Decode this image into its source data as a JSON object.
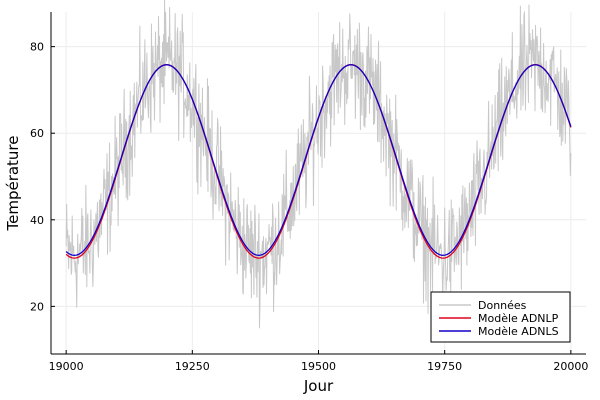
{
  "chart_data": {
    "type": "line",
    "xlabel": "Jour",
    "ylabel": "Température",
    "xlim": [
      18970,
      20030
    ],
    "ylim": [
      9,
      88
    ],
    "x_ticks": [
      19000,
      19250,
      19500,
      19750,
      20000
    ],
    "y_ticks": [
      20,
      40,
      60,
      80
    ],
    "grid": true,
    "legend_position": "bottom-right",
    "colors": {
      "data": "#c8c8c8",
      "adnlp": "#e0001b",
      "adnls": "#1400c8"
    },
    "series": [
      {
        "name": "Données",
        "kind": "noisy-observations",
        "x_range": [
          19000,
          20000
        ],
        "approx_points": [
          [
            19000,
            32
          ],
          [
            19005,
            45
          ],
          [
            19010,
            28
          ],
          [
            19015,
            25
          ],
          [
            19020,
            36
          ],
          [
            19030,
            14
          ],
          [
            19040,
            30
          ],
          [
            19055,
            35
          ],
          [
            19065,
            17
          ],
          [
            19080,
            50
          ],
          [
            19100,
            42
          ],
          [
            19120,
            58
          ],
          [
            19150,
            66
          ],
          [
            19175,
            78
          ],
          [
            19200,
            80
          ],
          [
            19225,
            72
          ],
          [
            19250,
            68
          ],
          [
            19275,
            55
          ],
          [
            19300,
            44
          ],
          [
            19330,
            36
          ],
          [
            19360,
            30
          ],
          [
            19380,
            28
          ],
          [
            19395,
            16
          ],
          [
            19420,
            40
          ],
          [
            19450,
            52
          ],
          [
            19480,
            62
          ],
          [
            19500,
            66
          ],
          [
            19520,
            72
          ],
          [
            19545,
            78
          ],
          [
            19560,
            85
          ],
          [
            19580,
            76
          ],
          [
            19600,
            74
          ],
          [
            19625,
            65
          ],
          [
            19650,
            55
          ],
          [
            19675,
            48
          ],
          [
            19700,
            40
          ],
          [
            19725,
            25
          ],
          [
            19740,
            20
          ],
          [
            19760,
            30
          ],
          [
            19790,
            40
          ],
          [
            19820,
            50
          ],
          [
            19850,
            60
          ],
          [
            19880,
            70
          ],
          [
            19900,
            78
          ],
          [
            19925,
            80
          ],
          [
            19950,
            78
          ],
          [
            19975,
            70
          ],
          [
            20000,
            58
          ]
        ]
      },
      {
        "name": "Modèle ADNLP",
        "kind": "sinusoid",
        "x_range": [
          19000,
          20000
        ],
        "mean": 53.5,
        "amplitude": 22.35,
        "period_days": 365.25,
        "peak_day": 19199,
        "approx_points": [
          [
            19000,
            32.0
          ],
          [
            19013,
            31.2
          ],
          [
            19100,
            52.5
          ],
          [
            19199,
            75.8
          ],
          [
            19290,
            55.5
          ],
          [
            19381,
            31.2
          ],
          [
            19470,
            51.0
          ],
          [
            19564,
            75.8
          ],
          [
            19650,
            57.5
          ],
          [
            19746,
            31.2
          ],
          [
            19840,
            53.0
          ],
          [
            19930,
            75.8
          ],
          [
            20000,
            61.5
          ]
        ]
      },
      {
        "name": "Modèle ADNLS",
        "kind": "sinusoid",
        "x_range": [
          19000,
          20000
        ],
        "mean": 53.8,
        "amplitude": 22.0,
        "period_days": 365.25,
        "peak_day": 19199,
        "approx_points": [
          [
            19000,
            32.5
          ],
          [
            19013,
            31.8
          ],
          [
            19100,
            52.8
          ],
          [
            19199,
            75.8
          ],
          [
            19290,
            55.8
          ],
          [
            19381,
            31.8
          ],
          [
            19470,
            51.3
          ],
          [
            19564,
            75.8
          ],
          [
            19650,
            57.8
          ],
          [
            19746,
            31.8
          ],
          [
            19840,
            53.3
          ],
          [
            19930,
            75.8
          ],
          [
            20000,
            61.5
          ]
        ]
      }
    ],
    "legend": [
      {
        "label": "Données",
        "color_key": "data"
      },
      {
        "label": "Modèle ADNLP",
        "color_key": "adnlp"
      },
      {
        "label": "Modèle ADNLS",
        "color_key": "adnls"
      }
    ]
  }
}
